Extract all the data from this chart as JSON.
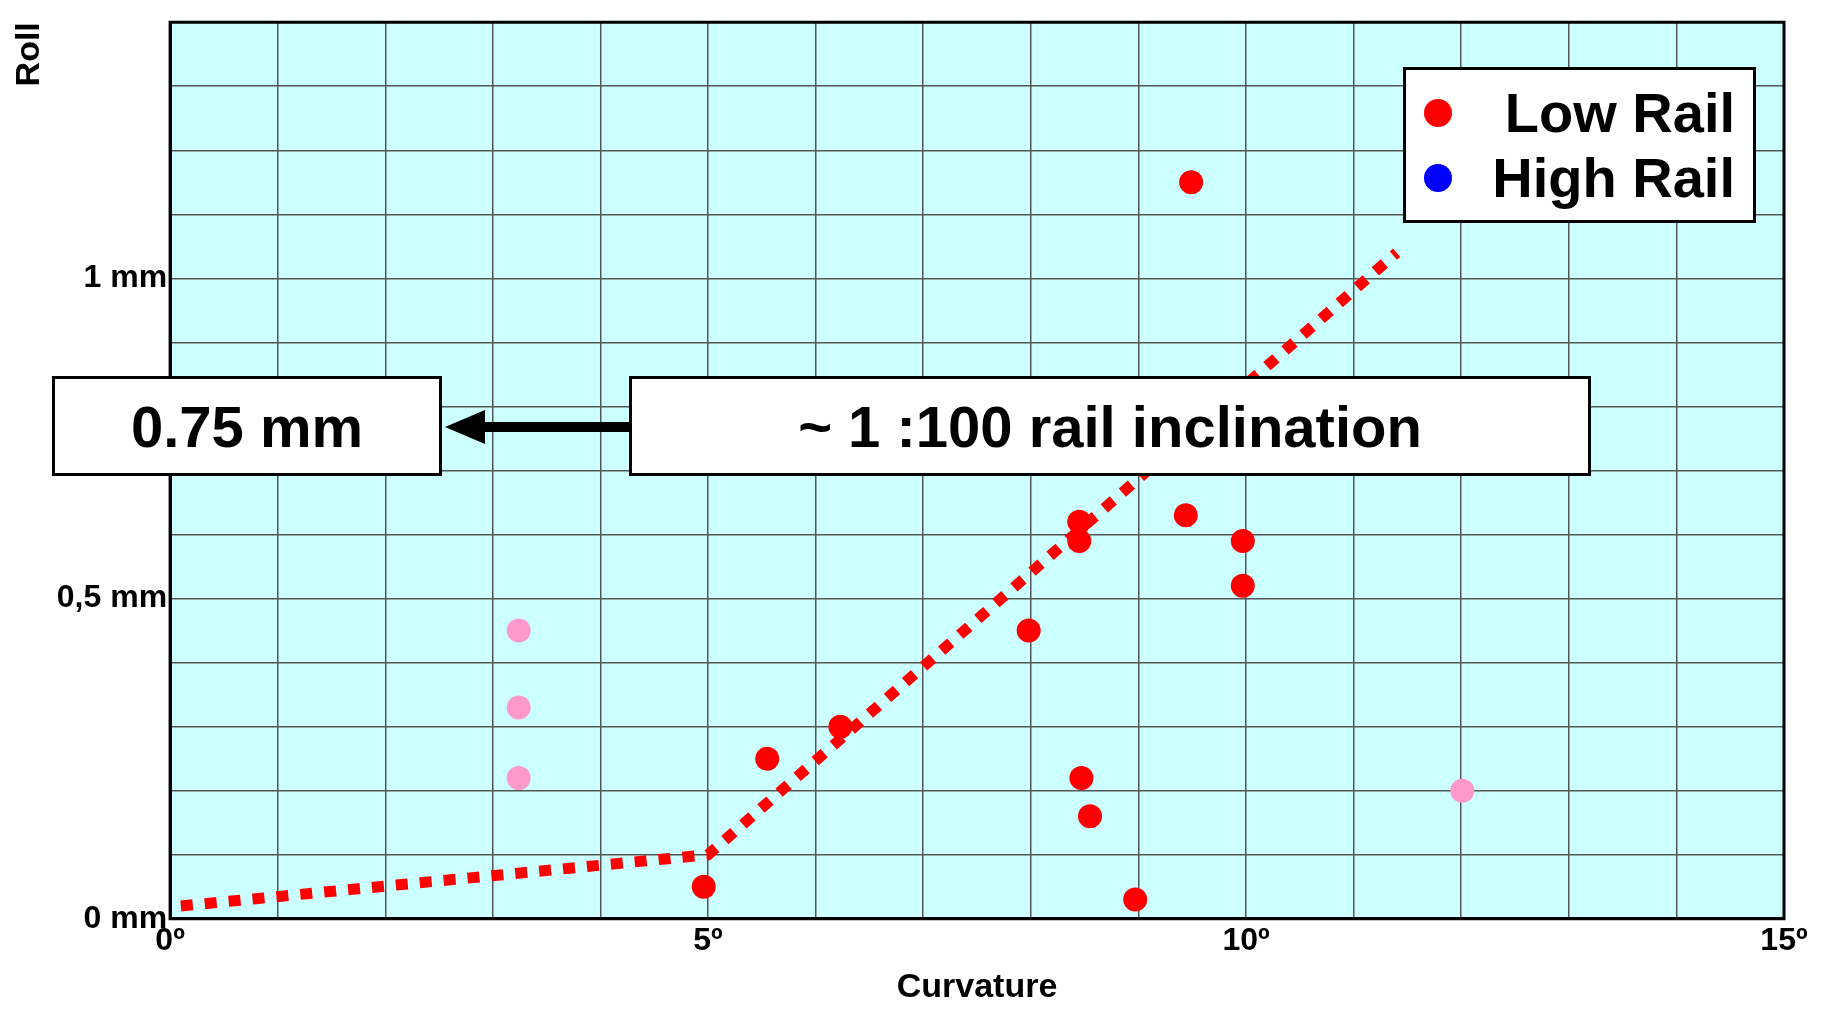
{
  "chart_data": {
    "type": "scatter",
    "xlabel": "Curvature",
    "ylabel": "Roll",
    "xlim": [
      0,
      15
    ],
    "ylim": [
      0,
      1.4
    ],
    "xticks": [
      {
        "value": 0,
        "label": "0º"
      },
      {
        "value": 1,
        "label": null
      },
      {
        "value": 2,
        "label": null
      },
      {
        "value": 3,
        "label": null
      },
      {
        "value": 4,
        "label": null
      },
      {
        "value": 5,
        "label": "5º"
      },
      {
        "value": 6,
        "label": null
      },
      {
        "value": 7,
        "label": null
      },
      {
        "value": 8,
        "label": null
      },
      {
        "value": 9,
        "label": null
      },
      {
        "value": 10,
        "label": "10º"
      },
      {
        "value": 11,
        "label": null
      },
      {
        "value": 12,
        "label": null
      },
      {
        "value": 13,
        "label": null
      },
      {
        "value": 14,
        "label": null
      },
      {
        "value": 15,
        "label": "15º"
      }
    ],
    "yticks": [
      {
        "value": 0,
        "label": "0 mm"
      },
      {
        "value": 0.1,
        "label": null
      },
      {
        "value": 0.2,
        "label": null
      },
      {
        "value": 0.3,
        "label": null
      },
      {
        "value": 0.4,
        "label": null
      },
      {
        "value": 0.5,
        "label": "0,5 mm"
      },
      {
        "value": 0.6,
        "label": null
      },
      {
        "value": 0.7,
        "label": null
      },
      {
        "value": 0.8,
        "label": null
      },
      {
        "value": 0.9,
        "label": null
      },
      {
        "value": 1,
        "label": "1 mm"
      },
      {
        "value": 1.1,
        "label": null
      },
      {
        "value": 1.2,
        "label": null
      },
      {
        "value": 1.3,
        "label": null
      },
      {
        "value": 1.4,
        "label": null
      }
    ],
    "grid": true,
    "legend": "top right",
    "marker": "circle",
    "series": [
      {
        "name": "Low Rail",
        "type": "scatter",
        "color": "#ff0000",
        "x": [
          4.96,
          5.55,
          6.23,
          7.98,
          8.45,
          8.45,
          8.47,
          8.55,
          8.97,
          9.49,
          9.44,
          9.97,
          9.97
        ],
        "values": [
          0.05,
          0.25,
          0.3,
          0.45,
          0.62,
          0.59,
          0.22,
          0.16,
          0.03,
          1.15,
          0.63,
          0.59,
          0.52
        ]
      },
      {
        "name": "High Rail",
        "type": "scatter",
        "color": "#0000ff"
      },
      {
        "type": "scatter",
        "color": "#ff99cc",
        "x": [
          3.24,
          3.24,
          3.24,
          12.01
        ],
        "values": [
          0.45,
          0.33,
          0.22,
          0.2
        ]
      },
      {
        "type": "line",
        "color": "#ff0000",
        "line_style": "dotted",
        "marker": "none",
        "x": [
          0.1,
          5,
          11.4
        ],
        "values": [
          0.02,
          0.1,
          1.04
        ]
      }
    ],
    "annotations": [
      "0.75 mm",
      "~ 1 :100 rail inclination"
    ]
  }
}
